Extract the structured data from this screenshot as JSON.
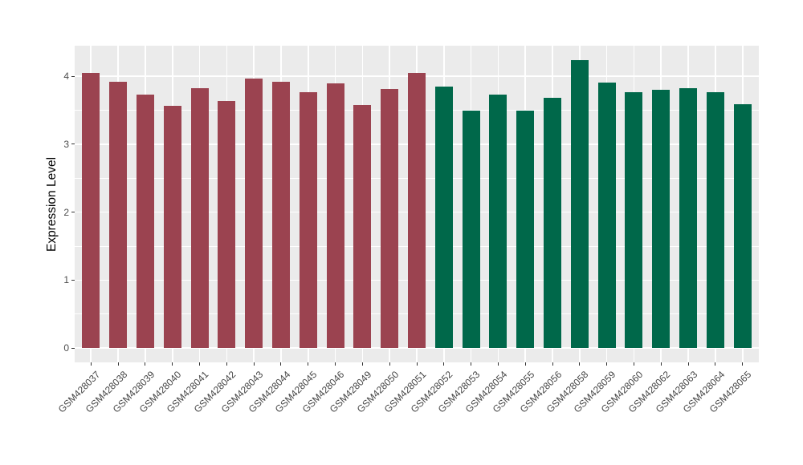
{
  "chart_data": {
    "type": "bar",
    "title": "",
    "xlabel": "",
    "ylabel": "Expression Level",
    "ylim": [
      -0.21,
      4.45
    ],
    "yticks": [
      0,
      1,
      2,
      3,
      4
    ],
    "grid": "on",
    "legend": "none",
    "panel_background": "#EBEBEB",
    "grid_color": "#FFFFFF",
    "tick_color": "#333333",
    "axis_text_color": "#4D4D4D",
    "group_colors": {
      "maroon": "#9B4350",
      "green": "#00684A"
    },
    "bars": [
      {
        "label": "GSM428037",
        "value": 4.05,
        "group": "maroon"
      },
      {
        "label": "GSM428038",
        "value": 3.92,
        "group": "maroon"
      },
      {
        "label": "GSM428039",
        "value": 3.73,
        "group": "maroon"
      },
      {
        "label": "GSM428040",
        "value": 3.56,
        "group": "maroon"
      },
      {
        "label": "GSM428041",
        "value": 3.83,
        "group": "maroon"
      },
      {
        "label": "GSM428042",
        "value": 3.64,
        "group": "maroon"
      },
      {
        "label": "GSM428043",
        "value": 3.97,
        "group": "maroon"
      },
      {
        "label": "GSM428044",
        "value": 3.92,
        "group": "maroon"
      },
      {
        "label": "GSM428045",
        "value": 3.77,
        "group": "maroon"
      },
      {
        "label": "GSM428046",
        "value": 3.9,
        "group": "maroon"
      },
      {
        "label": "GSM428049",
        "value": 3.58,
        "group": "maroon"
      },
      {
        "label": "GSM428050",
        "value": 3.81,
        "group": "maroon"
      },
      {
        "label": "GSM428051",
        "value": 4.05,
        "group": "maroon"
      },
      {
        "label": "GSM428052",
        "value": 3.85,
        "group": "green"
      },
      {
        "label": "GSM428053",
        "value": 3.5,
        "group": "green"
      },
      {
        "label": "GSM428054",
        "value": 3.73,
        "group": "green"
      },
      {
        "label": "GSM428055",
        "value": 3.5,
        "group": "green"
      },
      {
        "label": "GSM428056",
        "value": 3.68,
        "group": "green"
      },
      {
        "label": "GSM428058",
        "value": 4.24,
        "group": "green"
      },
      {
        "label": "GSM428059",
        "value": 3.91,
        "group": "green"
      },
      {
        "label": "GSM428060",
        "value": 3.76,
        "group": "green"
      },
      {
        "label": "GSM428062",
        "value": 3.8,
        "group": "green"
      },
      {
        "label": "GSM428063",
        "value": 3.82,
        "group": "green"
      },
      {
        "label": "GSM428064",
        "value": 3.76,
        "group": "green"
      },
      {
        "label": "GSM428065",
        "value": 3.59,
        "group": "green"
      }
    ]
  }
}
